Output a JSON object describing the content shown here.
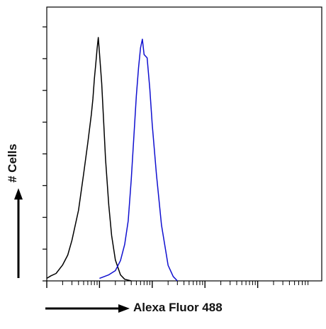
{
  "chart_data": {
    "type": "line",
    "title": "",
    "xlabel": "Alexa Fluor 488",
    "ylabel": "# Cells",
    "x_scale": "log",
    "xlim": [
      1,
      100000
    ],
    "ylim": [
      0,
      100
    ],
    "grid": false,
    "series": [
      {
        "color": "#000000",
        "x": [
          1,
          1.2,
          1.5,
          2,
          2.5,
          3,
          4,
          5,
          6,
          7,
          7.5,
          8,
          8.5,
          9,
          9.5,
          10,
          11,
          12,
          13,
          15,
          17,
          20,
          25,
          30,
          40
        ],
        "values": [
          1,
          2,
          3,
          6,
          10,
          16,
          28,
          42,
          55,
          66,
          72,
          80,
          86,
          92,
          96,
          90,
          78,
          63,
          48,
          30,
          18,
          8,
          2,
          1,
          0
        ]
      },
      {
        "color": "#1010d0",
        "x": [
          10,
          15,
          20,
          25,
          30,
          35,
          40,
          45,
          50,
          55,
          60,
          65,
          70,
          80,
          90,
          100,
          120,
          150,
          200,
          250,
          300
        ],
        "values": [
          1,
          2,
          4,
          8,
          14,
          24,
          40,
          58,
          73,
          84,
          92,
          96,
          90,
          88,
          76,
          62,
          42,
          22,
          6,
          2,
          0
        ]
      }
    ]
  }
}
